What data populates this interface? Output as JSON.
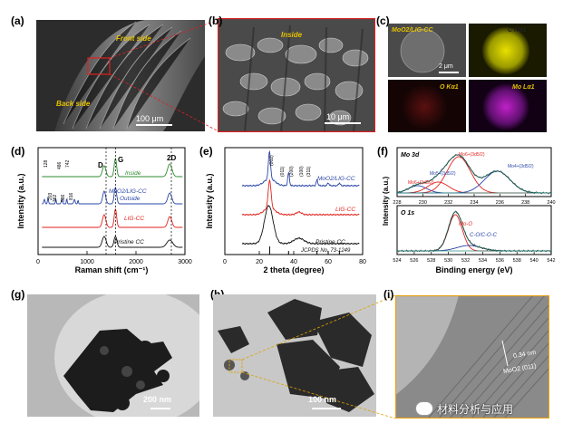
{
  "panels": {
    "a": {
      "letter": "(a)",
      "front_label": "Front side",
      "back_label": "Back side",
      "scale": "100 μm"
    },
    "b": {
      "letter": "(b)",
      "inside_label": "Inside",
      "scale": "10 μm"
    },
    "c": {
      "letter": "(c)",
      "map_titles": [
        "MoO2/LIG-CC",
        "C Kα1",
        "O Kα1",
        "Mo Lα1"
      ],
      "scale": "2 μm"
    },
    "g": {
      "letter": "(g)",
      "scale": "200 nm"
    },
    "h": {
      "letter": "(h)",
      "scale": "100 nm"
    },
    "i": {
      "letter": "(i)",
      "spacing": "0.34 nm",
      "plane": "MoO2 (011)"
    }
  },
  "chart_data": [
    {
      "panel": "(d)",
      "type": "line",
      "xlabel": "Raman shift (cm⁻¹)",
      "ylabel": "Intensity (a.u.)",
      "xlim": [
        0,
        3000
      ],
      "xticks": [
        0,
        1000,
        2000,
        3000
      ],
      "band_labels": [
        {
          "text": "D",
          "x": 1350
        },
        {
          "text": "G",
          "x": 1580
        },
        {
          "text": "2D",
          "x": 2690
        }
      ],
      "peak_labels": [
        "128",
        "203",
        "362",
        "486",
        "586",
        "742",
        "816"
      ],
      "series": [
        {
          "name": "Inside",
          "color": "#2e8b2e"
        },
        {
          "name": "MoO2/LIG-CC",
          "name2": "Outside",
          "color": "#2a46a8"
        },
        {
          "name": "LIG-CC",
          "color": "#e0231e"
        },
        {
          "name": "Pristine CC",
          "color": "#111111"
        }
      ]
    },
    {
      "panel": "(e)",
      "type": "line",
      "xlabel": "2 theta (degree)",
      "ylabel": "Intensity (a.u.)",
      "xlim": [
        0,
        80
      ],
      "xticks": [
        0,
        20,
        40,
        60,
        80
      ],
      "peak_labels": [
        "(002)",
        "(011)",
        "(200)",
        "(100)",
        "(311)"
      ],
      "series": [
        {
          "name": "MoO2/LIG-CC",
          "color": "#2a46a8"
        },
        {
          "name": "LIG-CC",
          "color": "#e0231e"
        },
        {
          "name": "Pristine CC",
          "color": "#111111"
        },
        {
          "name": "JCPDS No. 73-1249",
          "color": "#111111"
        }
      ]
    },
    {
      "panel": "(f)",
      "type": "line",
      "xlabel": "Binding energy (eV)",
      "ylabel": "Intensity (a.u.)",
      "top": {
        "title": "Mo 3d",
        "xlim": [
          228,
          240
        ],
        "xticks": [
          228,
          230,
          232,
          234,
          236,
          238,
          240
        ],
        "labels": [
          "Mo6+(3d5/2)",
          "Mo5+(3d5/2)",
          "Mo6+(3d3/2)",
          "Mo4+(3d5/2)"
        ]
      },
      "bottom": {
        "title": "O 1s",
        "xlim": [
          524,
          542
        ],
        "xticks": [
          524,
          526,
          528,
          530,
          532,
          534,
          536,
          538,
          540,
          542
        ],
        "labels": [
          "Mo-O",
          "C-O/C-O-C"
        ]
      }
    }
  ],
  "watermark": "材料分析与应用",
  "colors": {
    "blue": "#2a46a8",
    "red": "#e0231e",
    "green": "#2e8b2e",
    "teal": "#2a8a7a",
    "gold": "#e0a000",
    "frame_red": "#d92020",
    "frame_gold": "#e8a010"
  }
}
